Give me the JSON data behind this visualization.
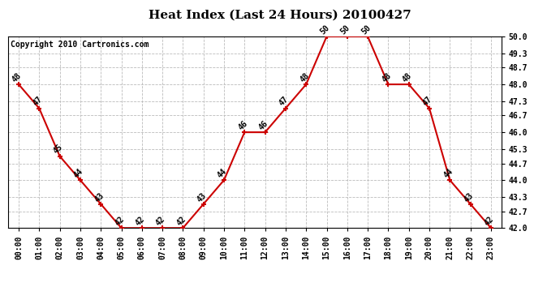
{
  "title": "Heat Index (Last 24 Hours) 20100427",
  "copyright": "Copyright 2010 Cartronics.com",
  "hours": [
    "00:00",
    "01:00",
    "02:00",
    "03:00",
    "04:00",
    "05:00",
    "06:00",
    "07:00",
    "08:00",
    "09:00",
    "10:00",
    "11:00",
    "12:00",
    "13:00",
    "14:00",
    "15:00",
    "16:00",
    "17:00",
    "18:00",
    "19:00",
    "20:00",
    "21:00",
    "22:00",
    "23:00"
  ],
  "values": [
    48,
    47,
    45,
    44,
    43,
    42,
    42,
    42,
    42,
    43,
    44,
    46,
    46,
    47,
    48,
    50,
    50,
    50,
    48,
    48,
    47,
    44,
    43,
    42
  ],
  "line_color": "#cc0000",
  "marker_color": "#cc0000",
  "background_color": "#ffffff",
  "grid_color": "#bbbbbb",
  "ylim_min": 42.0,
  "ylim_max": 50.0,
  "ytick_values": [
    42.0,
    42.7,
    43.3,
    44.0,
    44.7,
    45.3,
    46.0,
    46.7,
    47.3,
    48.0,
    48.7,
    49.3,
    50.0
  ],
  "title_fontsize": 11,
  "copyright_fontsize": 7,
  "label_fontsize": 7,
  "tick_fontsize": 7
}
